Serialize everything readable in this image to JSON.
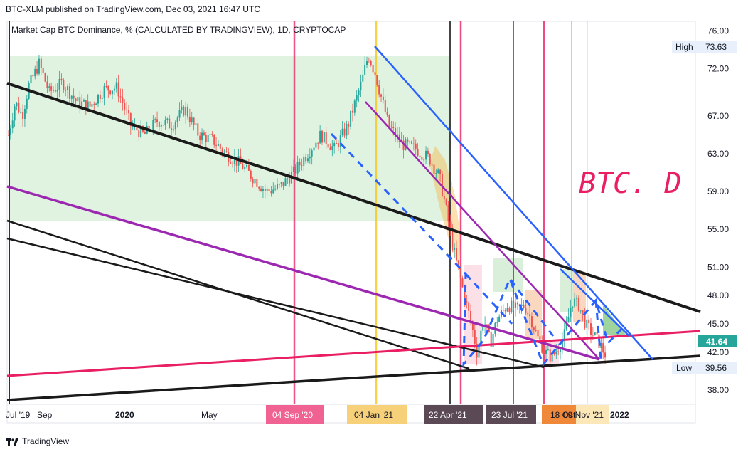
{
  "header": {
    "publisher_line": "BTC-XLM published on TradingView.com, Dec 03, 2021 16:47 UTC"
  },
  "footer": {
    "brand": "TradingView",
    "logo_icon": "tradingview-logo-icon"
  },
  "colors": {
    "green_zone": "#d5efd6",
    "bull_candle": "#26a69a",
    "bear_candle": "#ef5350",
    "pink_line": "#e91e63",
    "purple_line": "#9c27b0",
    "blue_line": "#2962ff",
    "black_line": "#131722",
    "orange_zone": "#f5a623",
    "title_color": "#e91e63",
    "grid": "#eef0f3"
  },
  "chart_data": {
    "type": "candlestick",
    "title": "Market Cap BTC Dominance, % (CALCULATED BY TRADINGVIEW), 1D, CRYPTOCAP",
    "annotation": "BTC. D",
    "ylim": [
      36.5,
      77
    ],
    "x_ticks": [
      "Jul '19",
      "Sep",
      "2020",
      "May"
    ],
    "y_ticks": [
      "76.00",
      "72.00",
      "67.00",
      "63.00",
      "59.00",
      "55.00",
      "51.00",
      "48.00",
      "45.00",
      "42.00",
      "40.00",
      "38.00"
    ],
    "price_labels": [
      {
        "name": "High",
        "value": "73.63"
      },
      {
        "name": "",
        "value": "41.64"
      },
      {
        "name": "Low",
        "value": "39.56"
      }
    ],
    "vertical_markers": [
      {
        "date": "04 Sep '20",
        "color": "#e91e63"
      },
      {
        "date": "04 Jan '21",
        "color": "#f5c518"
      },
      {
        "date": "22 Apr '21",
        "color": "#131722"
      },
      {
        "date": "",
        "color": "#e91e63"
      },
      {
        "date": "23 Jul '21",
        "color": "#131722"
      },
      {
        "date": "18 Oct '21",
        "color": "#e91e63"
      },
      {
        "date": "09 Nov '21",
        "color": "#f5c518"
      }
    ],
    "right_axis_extra_label": "2022",
    "price_path": [
      [
        0,
        65.0
      ],
      [
        2,
        68.5
      ],
      [
        4,
        67.0
      ],
      [
        6,
        70.2
      ],
      [
        9,
        72.5
      ],
      [
        12,
        69.5
      ],
      [
        16,
        70.5
      ],
      [
        20,
        68.5
      ],
      [
        24,
        68.0
      ],
      [
        28,
        69.8
      ],
      [
        32,
        70.0
      ],
      [
        36,
        66.0
      ],
      [
        40,
        65.0
      ],
      [
        44,
        66.5
      ],
      [
        48,
        66.0
      ],
      [
        52,
        67.8
      ],
      [
        56,
        65.0
      ],
      [
        60,
        64.5
      ],
      [
        64,
        63.0
      ],
      [
        68,
        62.0
      ],
      [
        72,
        60.5
      ],
      [
        76,
        59.0
      ],
      [
        80,
        59.5
      ],
      [
        84,
        61.0
      ],
      [
        88,
        63.0
      ],
      [
        92,
        65.0
      ],
      [
        96,
        63.5
      ],
      [
        100,
        66.0
      ],
      [
        104,
        70.5
      ],
      [
        106,
        73.5
      ],
      [
        108,
        71.5
      ],
      [
        112,
        66.0
      ],
      [
        116,
        64.0
      ],
      [
        120,
        63.5
      ],
      [
        124,
        62.5
      ],
      [
        127,
        60.5
      ],
      [
        129,
        57.0
      ],
      [
        131,
        53.0
      ],
      [
        133,
        50.0
      ],
      [
        135,
        47.0
      ],
      [
        137,
        44.0
      ],
      [
        138,
        42.0
      ],
      [
        140,
        45.5
      ],
      [
        142,
        43.0
      ],
      [
        144,
        45.5
      ],
      [
        147,
        47.0
      ],
      [
        150,
        46.5
      ],
      [
        152,
        47.0
      ],
      [
        154,
        45.5
      ],
      [
        156,
        43.5
      ],
      [
        158,
        42.0
      ],
      [
        160,
        41.5
      ],
      [
        162,
        42.5
      ],
      [
        164,
        44.0
      ],
      [
        166,
        47.5
      ],
      [
        168,
        47.0
      ],
      [
        170,
        45.0
      ],
      [
        172,
        44.0
      ],
      [
        174,
        43.0
      ],
      [
        176,
        41.64
      ]
    ]
  }
}
